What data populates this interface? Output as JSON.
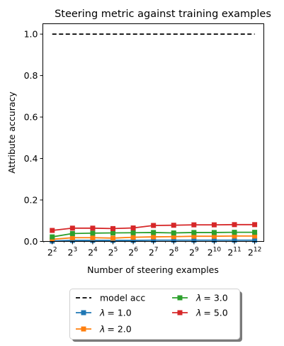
{
  "chart_data": {
    "type": "line",
    "title": "Steering metric against training examples",
    "xlabel": "Number of steering examples",
    "ylabel": "Attribute accuracy",
    "xscale": "log2",
    "x": [
      4,
      8,
      16,
      32,
      64,
      128,
      256,
      512,
      1024,
      2048,
      4096
    ],
    "x_tick_labels": [
      {
        "base": "2",
        "exp": "2"
      },
      {
        "base": "2",
        "exp": "3"
      },
      {
        "base": "2",
        "exp": "4"
      },
      {
        "base": "2",
        "exp": "5"
      },
      {
        "base": "2",
        "exp": "6"
      },
      {
        "base": "2",
        "exp": "7"
      },
      {
        "base": "2",
        "exp": "8"
      },
      {
        "base": "2",
        "exp": "9"
      },
      {
        "base": "2",
        "exp": "10"
      },
      {
        "base": "2",
        "exp": "11"
      },
      {
        "base": "2",
        "exp": "12"
      }
    ],
    "xlim": [
      2.9,
      5600
    ],
    "ylim": [
      0.0,
      1.05
    ],
    "y_ticks": [
      0.0,
      0.2,
      0.4,
      0.6,
      0.8,
      1.0
    ],
    "y_tick_labels": [
      "0.0",
      "0.2",
      "0.4",
      "0.6",
      "0.8",
      "1.0"
    ],
    "grid": false,
    "legend_position": "below-center",
    "series": [
      {
        "name": "model acc",
        "style": "dashed",
        "marker": "none",
        "color": "#000000",
        "values": [
          1.0,
          1.0,
          1.0,
          1.0,
          1.0,
          1.0,
          1.0,
          1.0,
          1.0,
          1.0,
          1.0
        ]
      },
      {
        "name": "λ = 1.0",
        "legend_prefix": "λ",
        "legend_suffix": "= 1.0",
        "style": "solid",
        "marker": "square",
        "color": "#1f77b4",
        "values": [
          0.002,
          0.005,
          0.005,
          0.005,
          0.005,
          0.006,
          0.006,
          0.006,
          0.006,
          0.006,
          0.006
        ]
      },
      {
        "name": "λ = 2.0",
        "legend_prefix": "λ",
        "legend_suffix": "= 2.0",
        "style": "solid",
        "marker": "square",
        "color": "#ff7f0e",
        "values": [
          0.01,
          0.018,
          0.018,
          0.016,
          0.02,
          0.022,
          0.023,
          0.025,
          0.025,
          0.026,
          0.026
        ]
      },
      {
        "name": "λ = 3.0",
        "legend_prefix": "λ",
        "legend_suffix": "= 3.0",
        "style": "solid",
        "marker": "square",
        "color": "#2ca02c",
        "values": [
          0.022,
          0.038,
          0.04,
          0.041,
          0.042,
          0.043,
          0.041,
          0.043,
          0.043,
          0.044,
          0.044
        ]
      },
      {
        "name": "λ = 5.0",
        "legend_prefix": "λ",
        "legend_suffix": "= 5.0",
        "style": "solid",
        "marker": "square",
        "color": "#d62728",
        "values": [
          0.053,
          0.064,
          0.064,
          0.062,
          0.065,
          0.077,
          0.078,
          0.08,
          0.08,
          0.081,
          0.081
        ]
      }
    ]
  }
}
